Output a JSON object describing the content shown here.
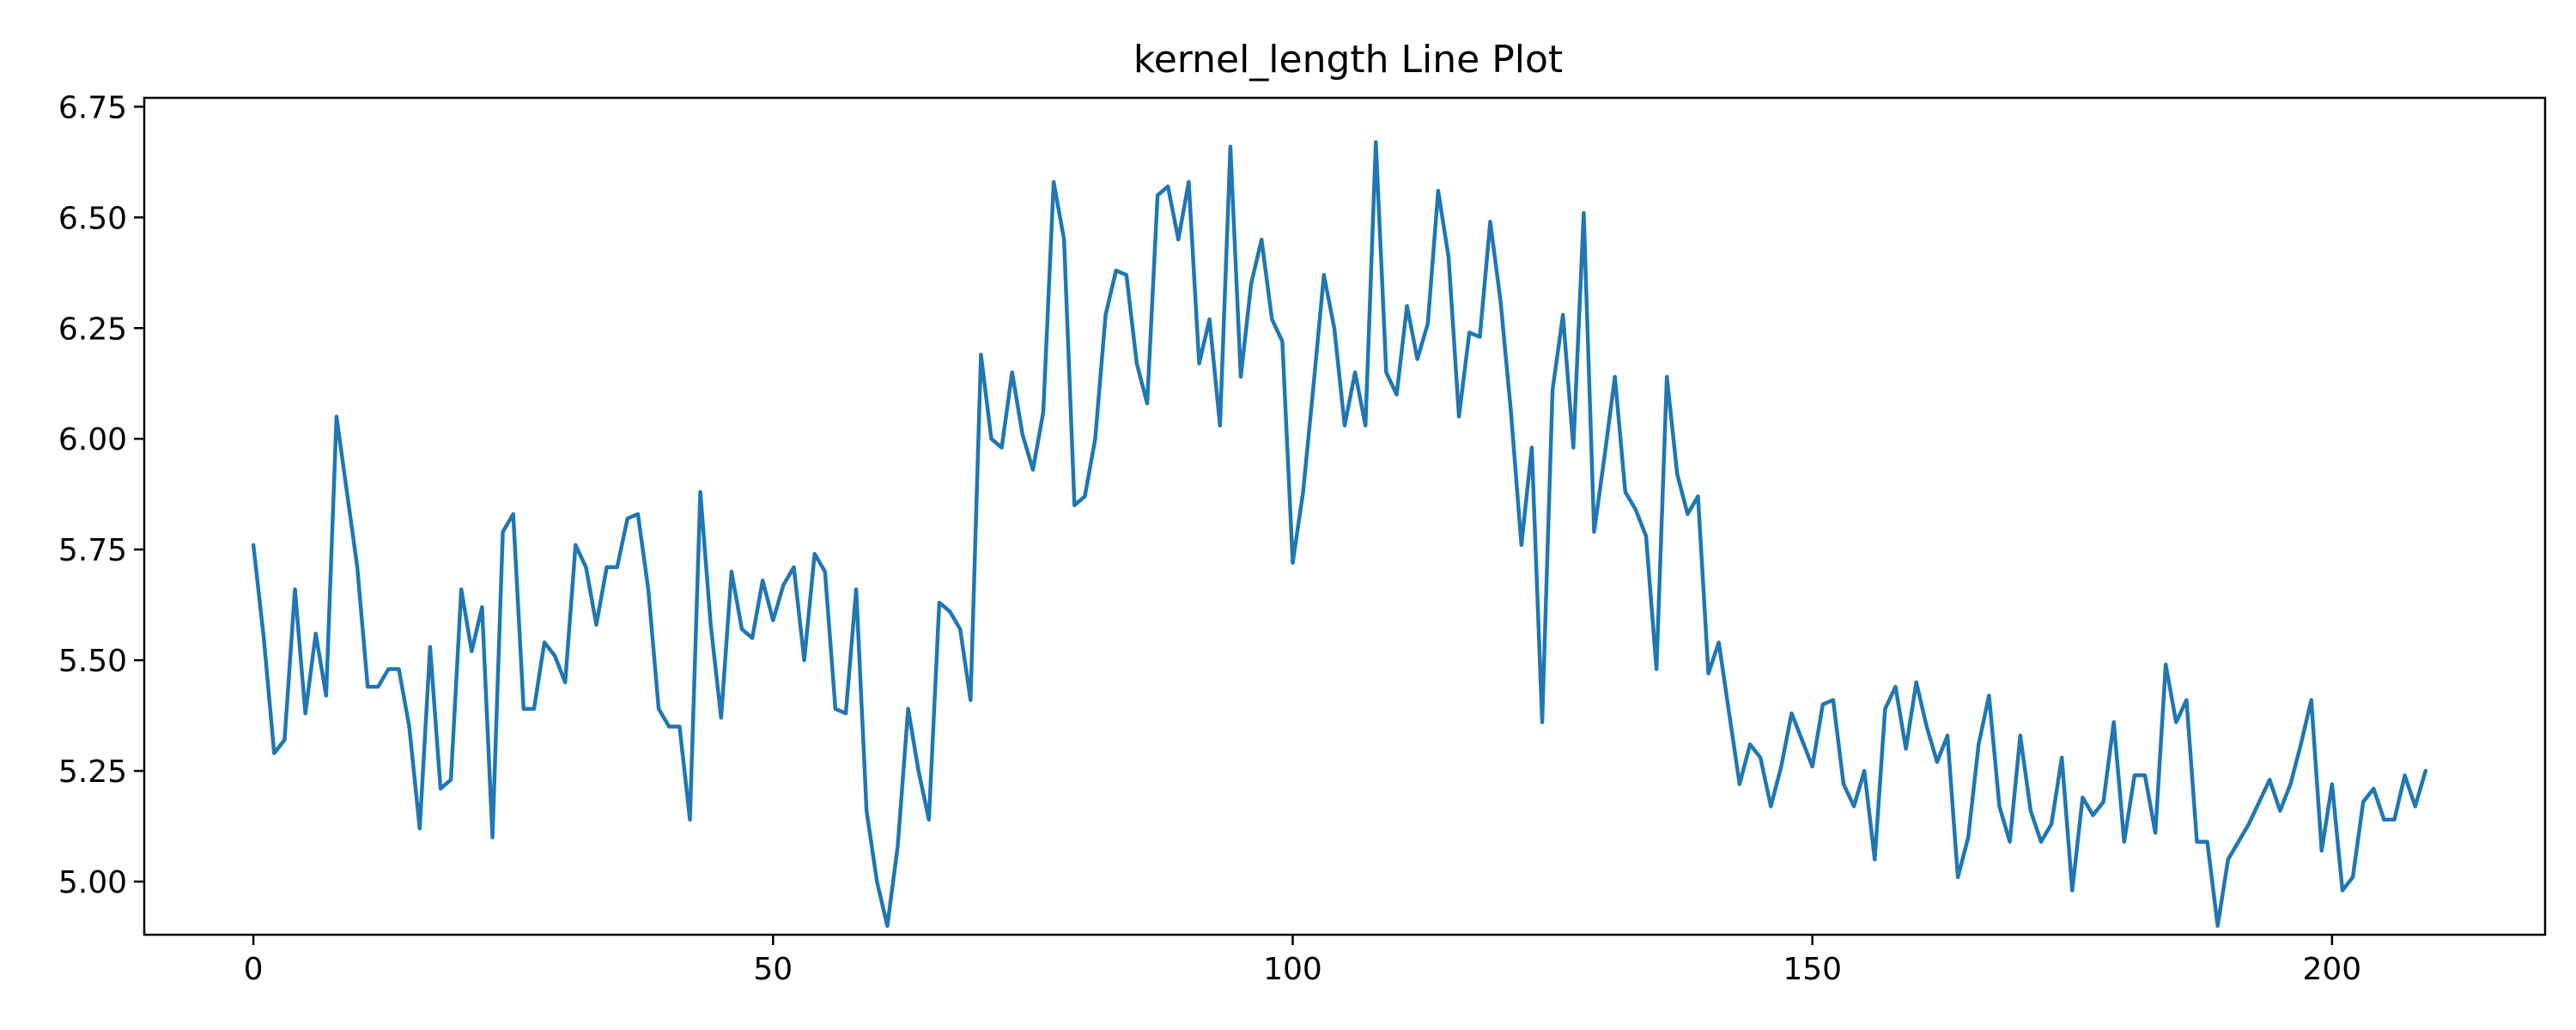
{
  "chart_data": {
    "type": "line",
    "title": "kernel_length Line Plot",
    "xlabel": "",
    "ylabel": "",
    "xlim": [
      -10.5,
      220.5
    ],
    "ylim": [
      4.88,
      6.77
    ],
    "xticks": [
      0,
      50,
      100,
      150,
      200
    ],
    "xtick_labels": [
      "0",
      "50",
      "100",
      "150",
      "200"
    ],
    "yticks": [
      5.0,
      5.25,
      5.5,
      5.75,
      6.0,
      6.25,
      6.5,
      6.75
    ],
    "ytick_labels": [
      "5.00",
      "5.25",
      "5.50",
      "5.75",
      "6.00",
      "6.25",
      "6.50",
      "6.75"
    ],
    "grid": false,
    "legend": "none",
    "series": [
      {
        "color": "#1f77b4",
        "x_start": 0,
        "x_step": 1,
        "values": [
          5.76,
          5.55,
          5.29,
          5.32,
          5.66,
          5.38,
          5.56,
          5.42,
          6.05,
          5.88,
          5.71,
          5.44,
          5.44,
          5.48,
          5.48,
          5.35,
          5.12,
          5.53,
          5.21,
          5.23,
          5.66,
          5.52,
          5.62,
          5.1,
          5.79,
          5.83,
          5.39,
          5.39,
          5.54,
          5.51,
          5.45,
          5.76,
          5.71,
          5.58,
          5.71,
          5.71,
          5.82,
          5.83,
          5.66,
          5.39,
          5.35,
          5.35,
          5.14,
          5.88,
          5.58,
          5.37,
          5.7,
          5.57,
          5.55,
          5.68,
          5.59,
          5.67,
          5.71,
          5.5,
          5.74,
          5.7,
          5.39,
          5.38,
          5.66,
          5.16,
          5.0,
          4.9,
          5.08,
          5.39,
          5.25,
          5.14,
          5.63,
          5.61,
          5.57,
          5.41,
          6.19,
          6.0,
          5.98,
          6.15,
          6.01,
          5.93,
          6.06,
          6.58,
          6.45,
          5.85,
          5.87,
          6.0,
          6.28,
          6.38,
          6.37,
          6.17,
          6.08,
          6.55,
          6.57,
          6.45,
          6.58,
          6.17,
          6.27,
          6.03,
          6.66,
          6.14,
          6.35,
          6.45,
          6.27,
          6.22,
          5.72,
          5.88,
          6.12,
          6.37,
          6.25,
          6.03,
          6.15,
          6.03,
          6.67,
          6.15,
          6.1,
          6.3,
          6.18,
          6.26,
          6.56,
          6.41,
          6.05,
          6.24,
          6.23,
          6.49,
          6.31,
          6.06,
          5.76,
          5.98,
          5.36,
          6.11,
          6.28,
          5.98,
          6.51,
          5.79,
          5.96,
          6.14,
          5.88,
          5.84,
          5.78,
          5.48,
          6.14,
          5.92,
          5.83,
          5.87,
          5.47,
          5.54,
          5.38,
          5.22,
          5.31,
          5.28,
          5.17,
          5.26,
          5.38,
          5.32,
          5.26,
          5.4,
          5.41,
          5.22,
          5.17,
          5.25,
          5.05,
          5.39,
          5.44,
          5.3,
          5.45,
          5.35,
          5.27,
          5.33,
          5.01,
          5.1,
          5.31,
          5.42,
          5.17,
          5.09,
          5.33,
          5.16,
          5.09,
          5.13,
          5.28,
          4.98,
          5.19,
          5.15,
          5.18,
          5.36,
          5.09,
          5.24,
          5.24,
          5.11,
          5.49,
          5.36,
          5.41,
          5.09,
          5.09,
          4.9,
          5.05,
          5.09,
          5.13,
          5.18,
          5.23,
          5.16,
          5.22,
          5.31,
          5.41,
          5.07,
          5.22,
          4.98,
          5.01,
          5.18,
          5.21,
          5.14,
          5.14,
          5.24,
          5.17,
          5.25
        ]
      }
    ]
  }
}
